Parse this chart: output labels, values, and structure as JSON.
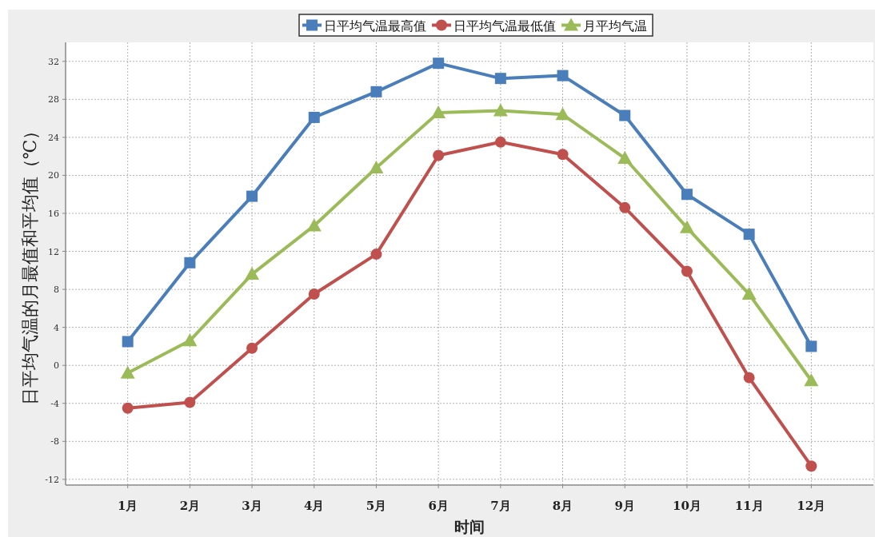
{
  "chart_data": {
    "type": "line",
    "categories": [
      "1月",
      "2月",
      "3月",
      "4月",
      "5月",
      "6月",
      "7月",
      "8月",
      "9月",
      "10月",
      "11月",
      "12月"
    ],
    "series": [
      {
        "name": "日平均气温最高值",
        "color": "#4a7ebb",
        "marker": "square",
        "values": [
          2.5,
          10.8,
          17.8,
          26.1,
          28.8,
          31.8,
          30.2,
          30.5,
          26.3,
          18.0,
          13.8,
          2.0
        ]
      },
      {
        "name": "日平均气温最低值",
        "color": "#c0504d",
        "marker": "circle",
        "values": [
          -4.5,
          -3.9,
          1.8,
          7.5,
          11.7,
          22.1,
          23.5,
          22.2,
          16.6,
          9.9,
          -1.3,
          -10.6
        ]
      },
      {
        "name": "月平均气温",
        "color": "#9bbb59",
        "marker": "triangle",
        "values": [
          -0.8,
          2.6,
          9.6,
          14.7,
          20.8,
          26.6,
          26.8,
          26.4,
          21.8,
          14.5,
          7.5,
          -1.6
        ]
      }
    ],
    "xlabel": "时间",
    "ylabel": "日平均气温的月最值和平均值（℃）",
    "ylim": [
      -12.6,
      34
    ],
    "yticks": [
      -12,
      -8,
      -4,
      0,
      4,
      8,
      12,
      16,
      20,
      24,
      28,
      32
    ],
    "grid": true,
    "legend": "top"
  }
}
